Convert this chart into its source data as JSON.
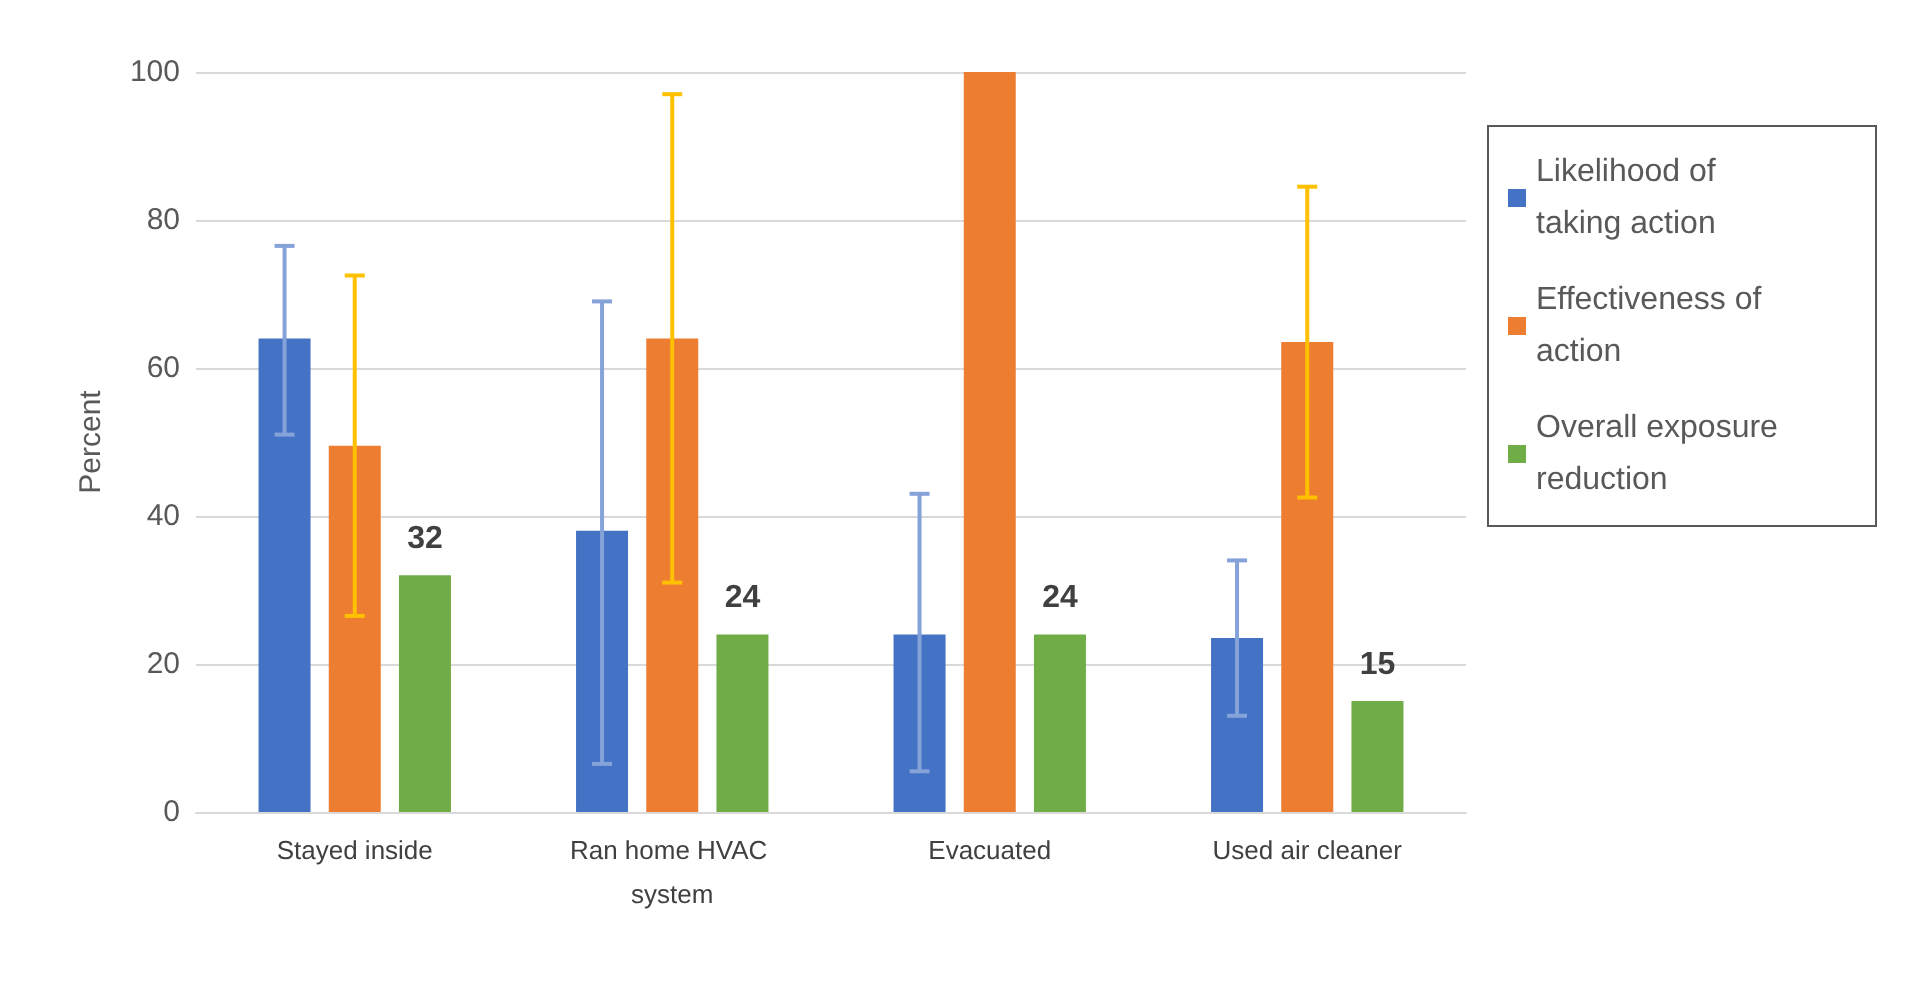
{
  "chart_data": {
    "type": "bar",
    "ylabel": "Percent",
    "categories": [
      "Stayed inside",
      "Ran home HVAC system",
      "Evacuated",
      "Used air cleaner"
    ],
    "series": [
      {
        "name": "Likelihood of taking action",
        "color": "#4472c4",
        "values": [
          64,
          38,
          24,
          23.5
        ],
        "errors": [
          [
            51,
            76.5
          ],
          [
            6.5,
            69
          ],
          [
            5.5,
            43
          ],
          [
            13,
            34
          ]
        ]
      },
      {
        "name": "Effectiveness of action",
        "color": "#ed7d31",
        "values": [
          49.5,
          64,
          100,
          63.5
        ],
        "errors": [
          [
            26.5,
            72.5
          ],
          [
            31,
            97
          ],
          null,
          [
            42.5,
            84.5
          ]
        ]
      },
      {
        "name": "Overall exposure reduction",
        "color": "#70ad47",
        "values": [
          32,
          24,
          24,
          15
        ],
        "value_labels": [
          "32",
          "24",
          "24",
          "15"
        ]
      }
    ],
    "ylim": [
      0,
      100
    ],
    "yticks": [
      0,
      20,
      40,
      60,
      80,
      100
    ],
    "grid": "y",
    "legend": "right"
  }
}
